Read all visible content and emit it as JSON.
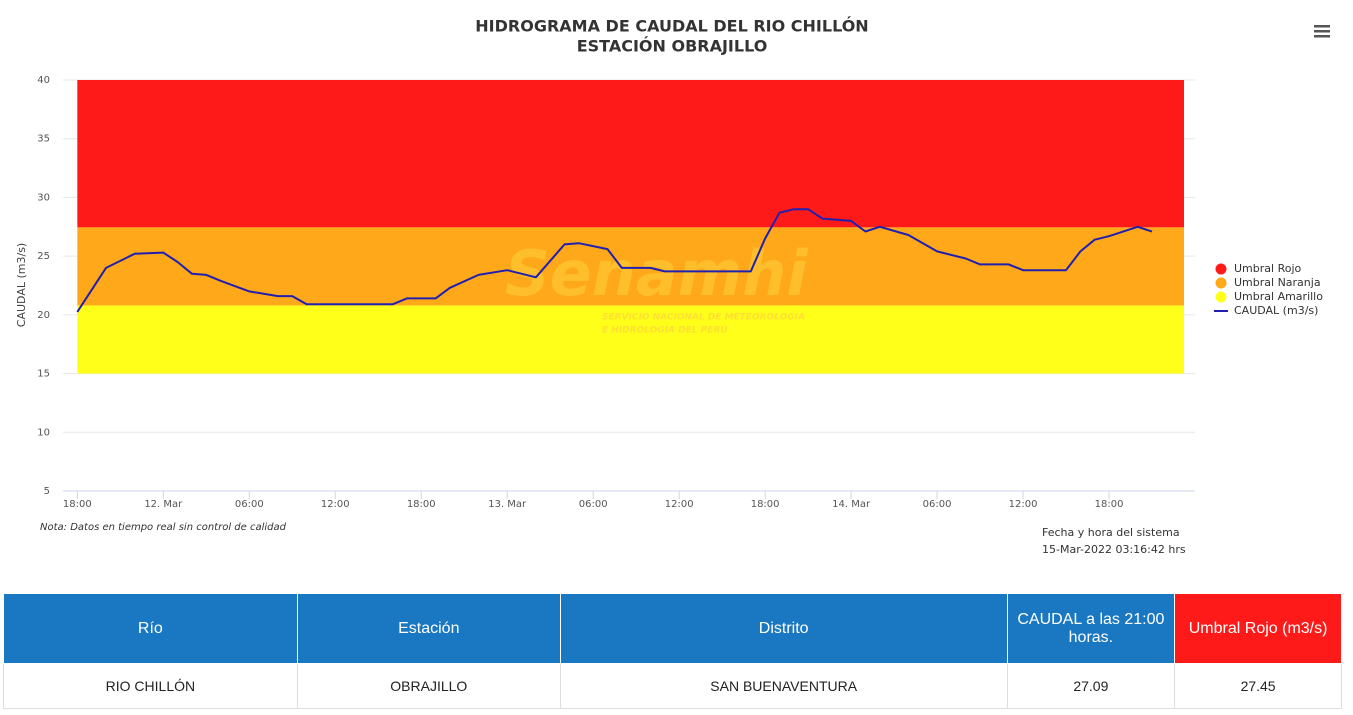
{
  "chart_data": {
    "type": "line",
    "title": "HIDROGRAMA DE CAUDAL DEL RIO CHILLÓN",
    "subtitle": "ESTACIÓN OBRAJILLO",
    "y_label": "CAUDAL (m3/s)",
    "watermark": "Senamhi",
    "watermark_lines": [
      "SERVICIO NACIONAL DE METEOROLOGÍA",
      "E HIDROLOGÍA DEL PERÚ"
    ],
    "note": "Nota: Datos en tiempo real sin control de calidad",
    "system_label": "Fecha y hora del sistema",
    "system_time": "15-Mar-2022 03:16:42 hrs",
    "xlim": [
      "11. Mar 17:00",
      "15. Mar 00:00"
    ],
    "xticks": [
      {
        "value": "11. Mar 18:00",
        "label": "18:00"
      },
      {
        "value": "12. Mar 00:00",
        "label": "12. Mar"
      },
      {
        "value": "12. Mar 06:00",
        "label": "06:00"
      },
      {
        "value": "12. Mar 12:00",
        "label": "12:00"
      },
      {
        "value": "12. Mar 18:00",
        "label": "18:00"
      },
      {
        "value": "13. Mar 00:00",
        "label": "13. Mar"
      },
      {
        "value": "13. Mar 06:00",
        "label": "06:00"
      },
      {
        "value": "13. Mar 12:00",
        "label": "12:00"
      },
      {
        "value": "13. Mar 18:00",
        "label": "18:00"
      },
      {
        "value": "14. Mar 00:00",
        "label": "14. Mar"
      },
      {
        "value": "14. Mar 06:00",
        "label": "06:00"
      },
      {
        "value": "14. Mar 12:00",
        "label": "12:00"
      },
      {
        "value": "14. Mar 18:00",
        "label": "18:00"
      }
    ],
    "ylim": [
      5,
      40
    ],
    "yticks": [
      5,
      10,
      15,
      20,
      25,
      30,
      35,
      40
    ],
    "grid": true,
    "bands": [
      {
        "name": "Umbral Rojo",
        "color": "#ff1a1a",
        "from": 27.45,
        "to": 40
      },
      {
        "name": "Umbral Naranja",
        "color": "#ffa81a",
        "from": 20.8,
        "to": 27.45
      },
      {
        "name": "Umbral Amarillo",
        "color": "#ffff1a",
        "from": 15,
        "to": 20.8
      }
    ],
    "x": [
      "11. Mar 18:00",
      "11. Mar 20:00",
      "11. Mar 22:00",
      "12. Mar 00:00",
      "12. Mar 01:00",
      "12. Mar 02:00",
      "12. Mar 03:00",
      "12. Mar 04:00",
      "12. Mar 06:00",
      "12. Mar 08:00",
      "12. Mar 09:00",
      "12. Mar 10:00",
      "12. Mar 16:00",
      "12. Mar 17:00",
      "12. Mar 19:00",
      "12. Mar 20:00",
      "12. Mar 22:00",
      "13. Mar 00:00",
      "13. Mar 02:00",
      "13. Mar 04:00",
      "13. Mar 05:00",
      "13. Mar 07:00",
      "13. Mar 08:00",
      "13. Mar 10:00",
      "13. Mar 11:00",
      "13. Mar 17:00",
      "13. Mar 18:00",
      "13. Mar 19:00",
      "13. Mar 20:00",
      "13. Mar 21:00",
      "13. Mar 22:00",
      "14. Mar 00:00",
      "14. Mar 01:00",
      "14. Mar 02:00",
      "14. Mar 04:00",
      "14. Mar 06:00",
      "14. Mar 08:00",
      "14. Mar 09:00",
      "14. Mar 11:00",
      "14. Mar 12:00",
      "14. Mar 15:00",
      "14. Mar 16:00",
      "14. Mar 17:00",
      "14. Mar 18:00",
      "14. Mar 20:00",
      "14. Mar 21:00"
    ],
    "series": [
      {
        "name": "CAUDAL (m3/s)",
        "color": "#2020b0",
        "values": [
          20.25,
          24.0,
          25.2,
          25.3,
          24.5,
          23.5,
          23.4,
          22.9,
          22.0,
          21.6,
          21.6,
          20.9,
          20.9,
          21.4,
          21.4,
          22.3,
          23.4,
          23.8,
          23.2,
          26.0,
          26.1,
          25.6,
          24.0,
          24.0,
          23.7,
          23.7,
          26.5,
          28.7,
          29.0,
          29.0,
          28.2,
          28.0,
          27.1,
          27.5,
          26.8,
          25.4,
          24.8,
          24.3,
          24.3,
          23.8,
          23.8,
          25.4,
          26.4,
          26.7,
          27.5,
          27.09
        ]
      }
    ]
  },
  "table": {
    "header": [
      "Río",
      "Estación",
      "Distrito",
      "CAUDAL a las 21:00 horas.",
      "Umbral Rojo (m3/s)"
    ],
    "rows": [
      [
        "RIO CHILLÓN",
        "OBRAJILLO",
        "SAN BUENAVENTURA",
        "27.09",
        "27.45"
      ]
    ]
  }
}
